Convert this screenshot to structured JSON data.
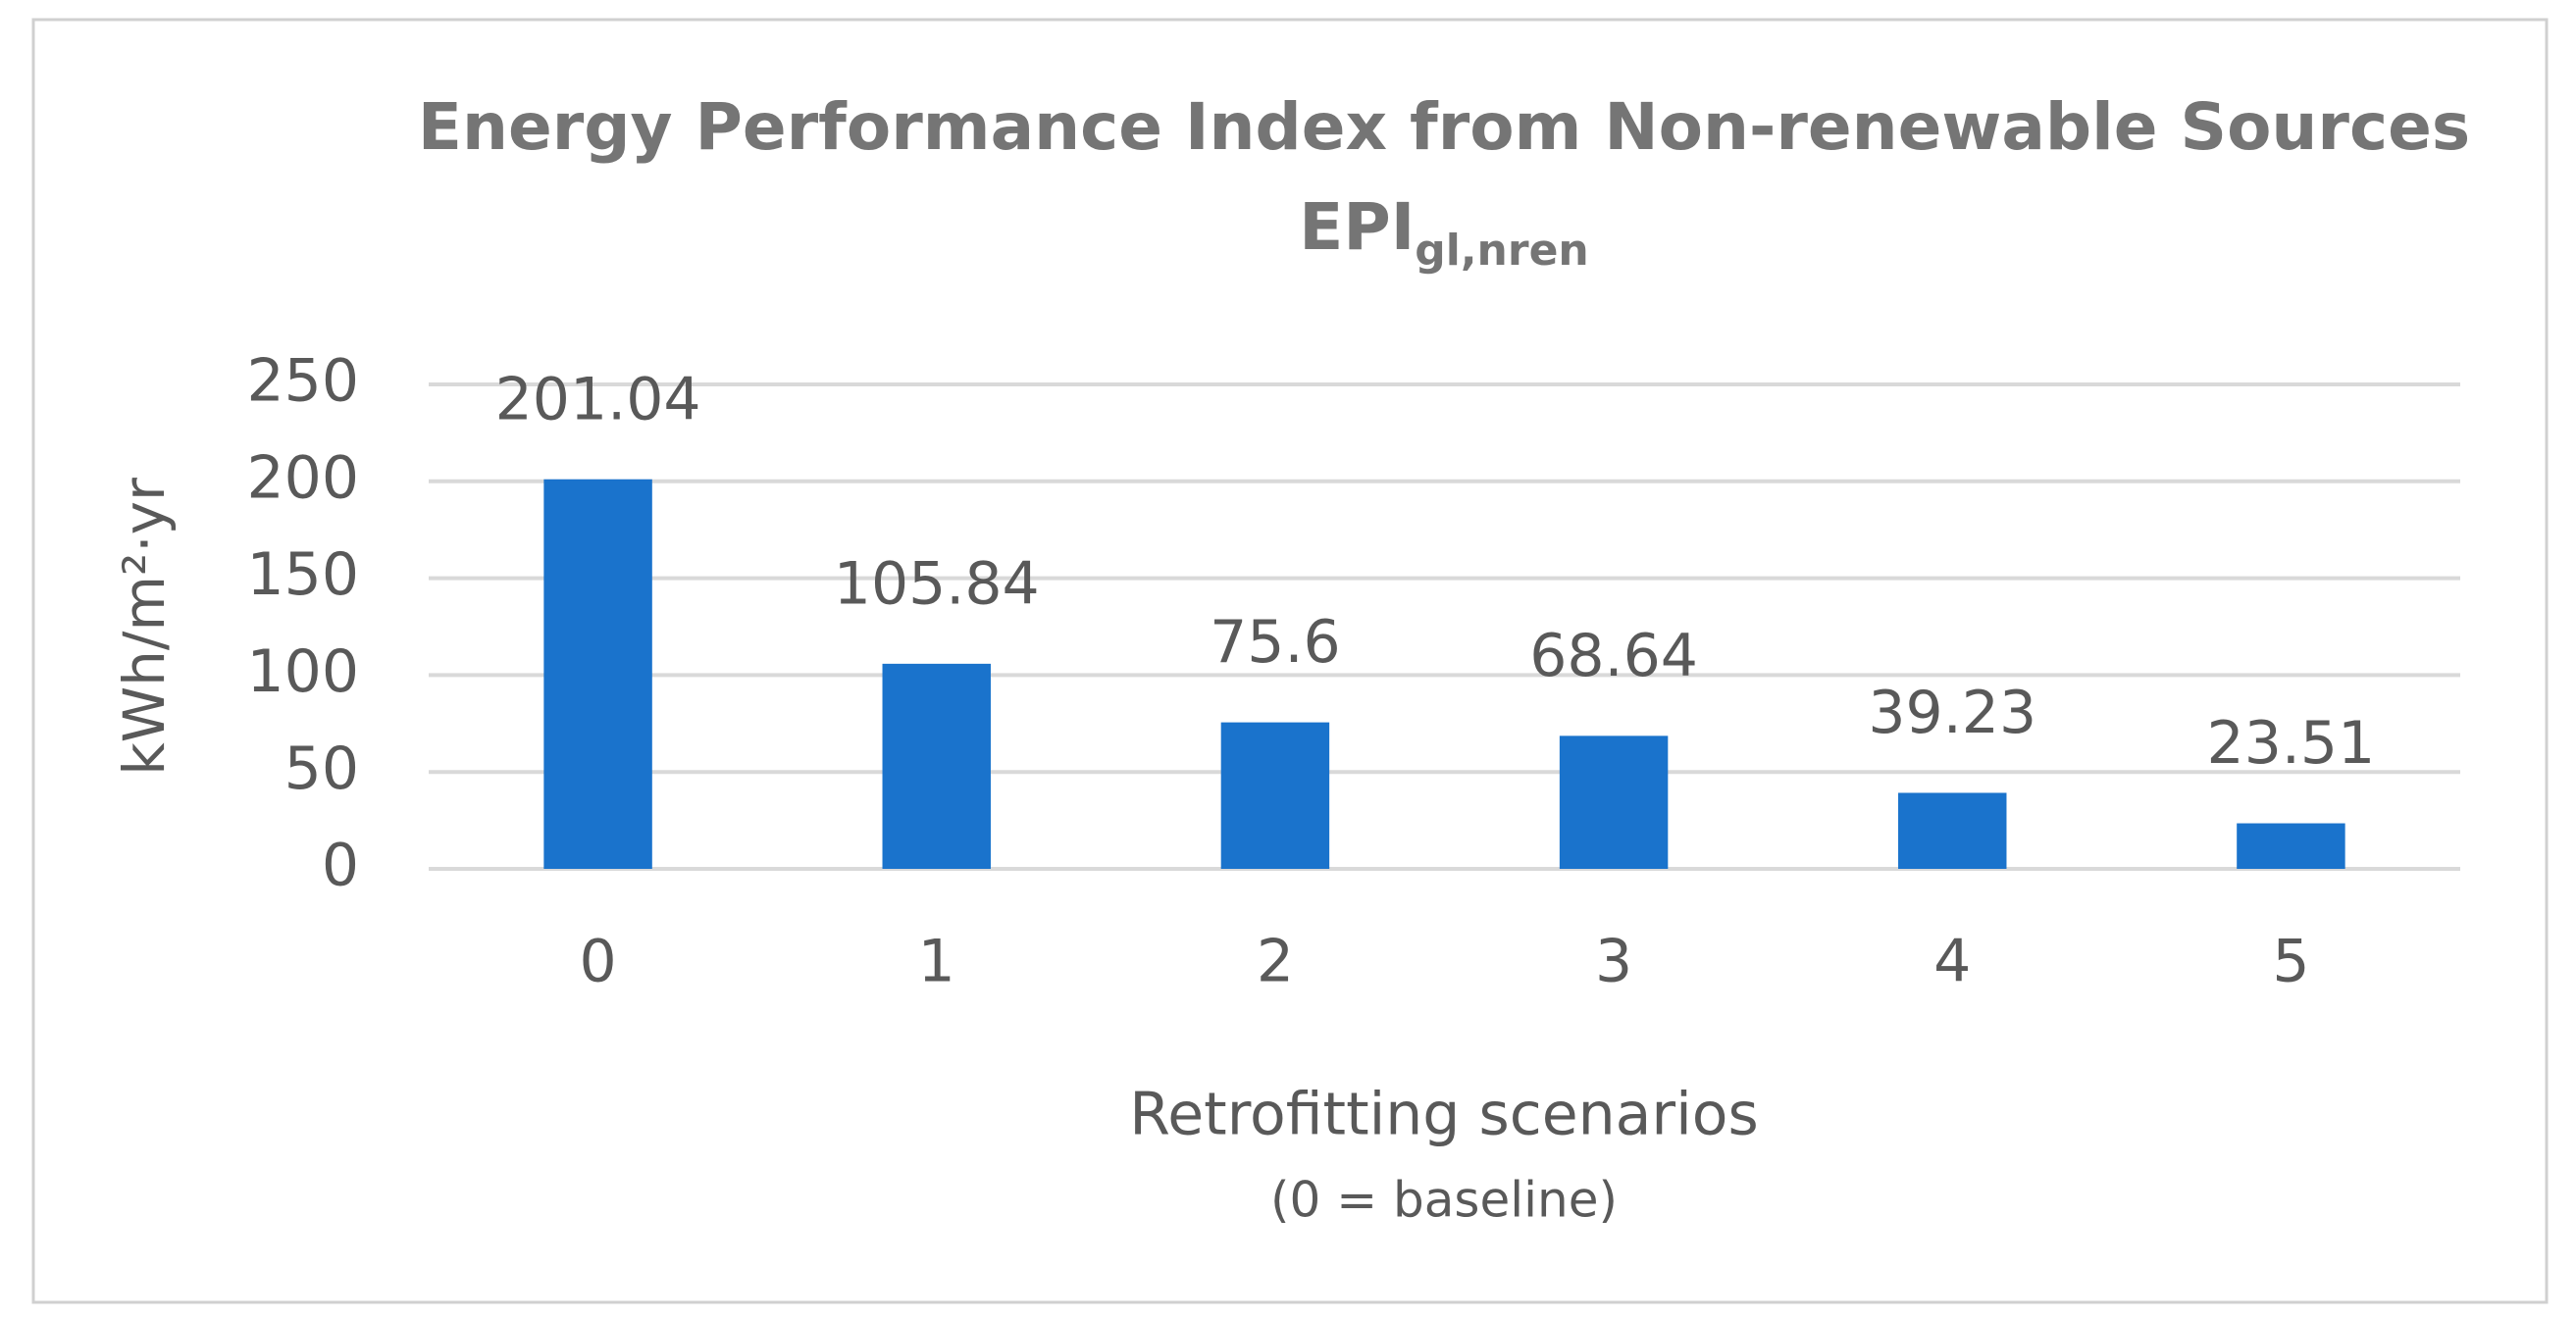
{
  "chart_data": {
    "type": "bar",
    "title": "Energy Performance Index from Non-renewable Sources",
    "title_line2": "EPI",
    "title_line2_subscript": "gl,nren",
    "ylabel": "kWh/m²·yr",
    "xlabel": "Retrofitting scenarios",
    "xlabel_note": "(0 = baseline)",
    "categories": [
      "0",
      "1",
      "2",
      "3",
      "4",
      "5"
    ],
    "values": [
      201.04,
      105.84,
      75.6,
      68.64,
      39.23,
      23.51
    ],
    "color": "#1a73cc",
    "ylim": [
      0,
      250
    ],
    "yticks": [
      0,
      50,
      100,
      150,
      200,
      250
    ],
    "grid": true
  }
}
